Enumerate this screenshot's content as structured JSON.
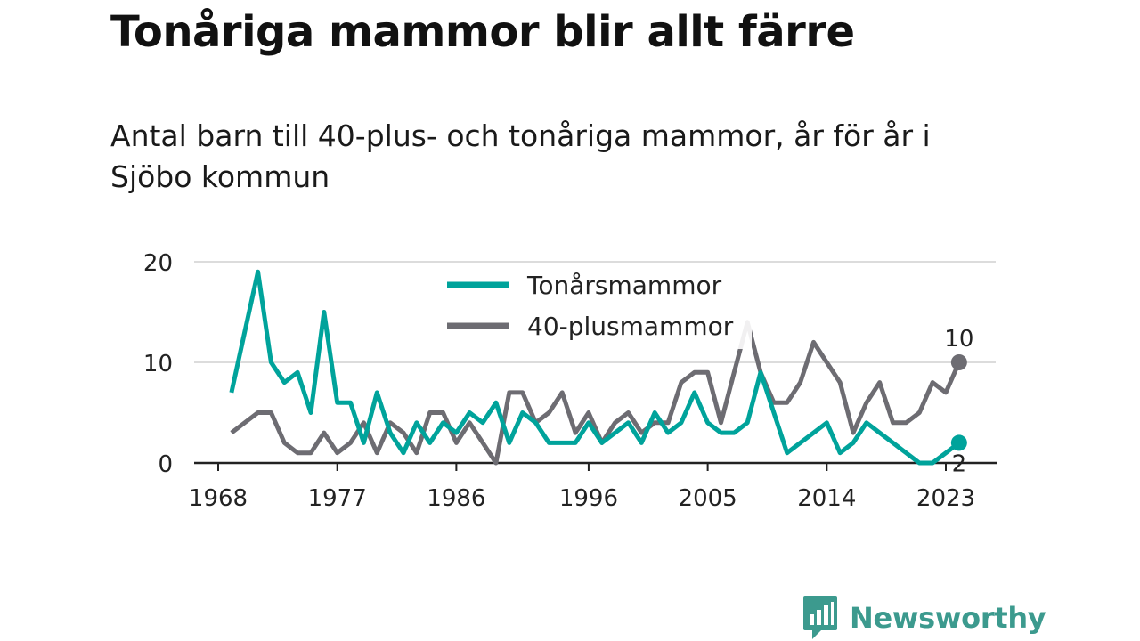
{
  "title": "Tonåriga mammor blir allt färre",
  "subtitle": "Antal barn till 40-plus- och tonåriga mammor, år för år i Sjöbo kommun",
  "brand": "Newsworthy",
  "colors": {
    "teal": "#00a39b",
    "gray": "#6d6c72",
    "grid": "#dcdcdc",
    "brand": "#3c9a8e"
  },
  "chart_data": {
    "type": "line",
    "title": "Tonåriga mammor blir allt färre",
    "x": [
      1969,
      1970,
      1971,
      1972,
      1973,
      1974,
      1975,
      1976,
      1977,
      1978,
      1979,
      1980,
      1981,
      1982,
      1983,
      1984,
      1985,
      1986,
      1987,
      1988,
      1989,
      1990,
      1991,
      1992,
      1993,
      1994,
      1995,
      1996,
      1997,
      1998,
      1999,
      2000,
      2001,
      2002,
      2003,
      2004,
      2005,
      2006,
      2007,
      2008,
      2009,
      2010,
      2011,
      2012,
      2013,
      2014,
      2015,
      2016,
      2017,
      2018,
      2019,
      2020,
      2021,
      2022,
      2023,
      2024
    ],
    "xlim": [
      1968,
      2024
    ],
    "x_ticks": [
      "1968",
      "1977",
      "1986",
      "1996",
      "2005",
      "2014",
      "2023"
    ],
    "y_ticks": [
      "0",
      "10",
      "20"
    ],
    "ylim": [
      0,
      20
    ],
    "grid": true,
    "legend_position": "top-center",
    "series": [
      {
        "name": "Tonårsmammor",
        "color": "#00a39b",
        "values": [
          7,
          13,
          19,
          10,
          8,
          9,
          5,
          15,
          6,
          6,
          2,
          7,
          3,
          1,
          4,
          2,
          4,
          3,
          5,
          4,
          6,
          2,
          5,
          4,
          2,
          2,
          2,
          4,
          2,
          3,
          4,
          2,
          5,
          3,
          4,
          7,
          4,
          3,
          3,
          4,
          9,
          5,
          1,
          2,
          3,
          4,
          1,
          2,
          4,
          3,
          2,
          1,
          0,
          0,
          1,
          2
        ],
        "end_label": "2"
      },
      {
        "name": "40-plusmammor",
        "color": "#6d6c72",
        "values": [
          3,
          4,
          5,
          5,
          2,
          1,
          1,
          3,
          1,
          2,
          4,
          1,
          4,
          3,
          1,
          5,
          5,
          2,
          4,
          2,
          0,
          7,
          7,
          4,
          5,
          7,
          3,
          5,
          2,
          4,
          5,
          3,
          4,
          4,
          8,
          9,
          9,
          4,
          9,
          14,
          9,
          6,
          6,
          8,
          12,
          10,
          8,
          3,
          6,
          8,
          4,
          4,
          5,
          8,
          7,
          10
        ],
        "end_label": "10"
      }
    ]
  }
}
